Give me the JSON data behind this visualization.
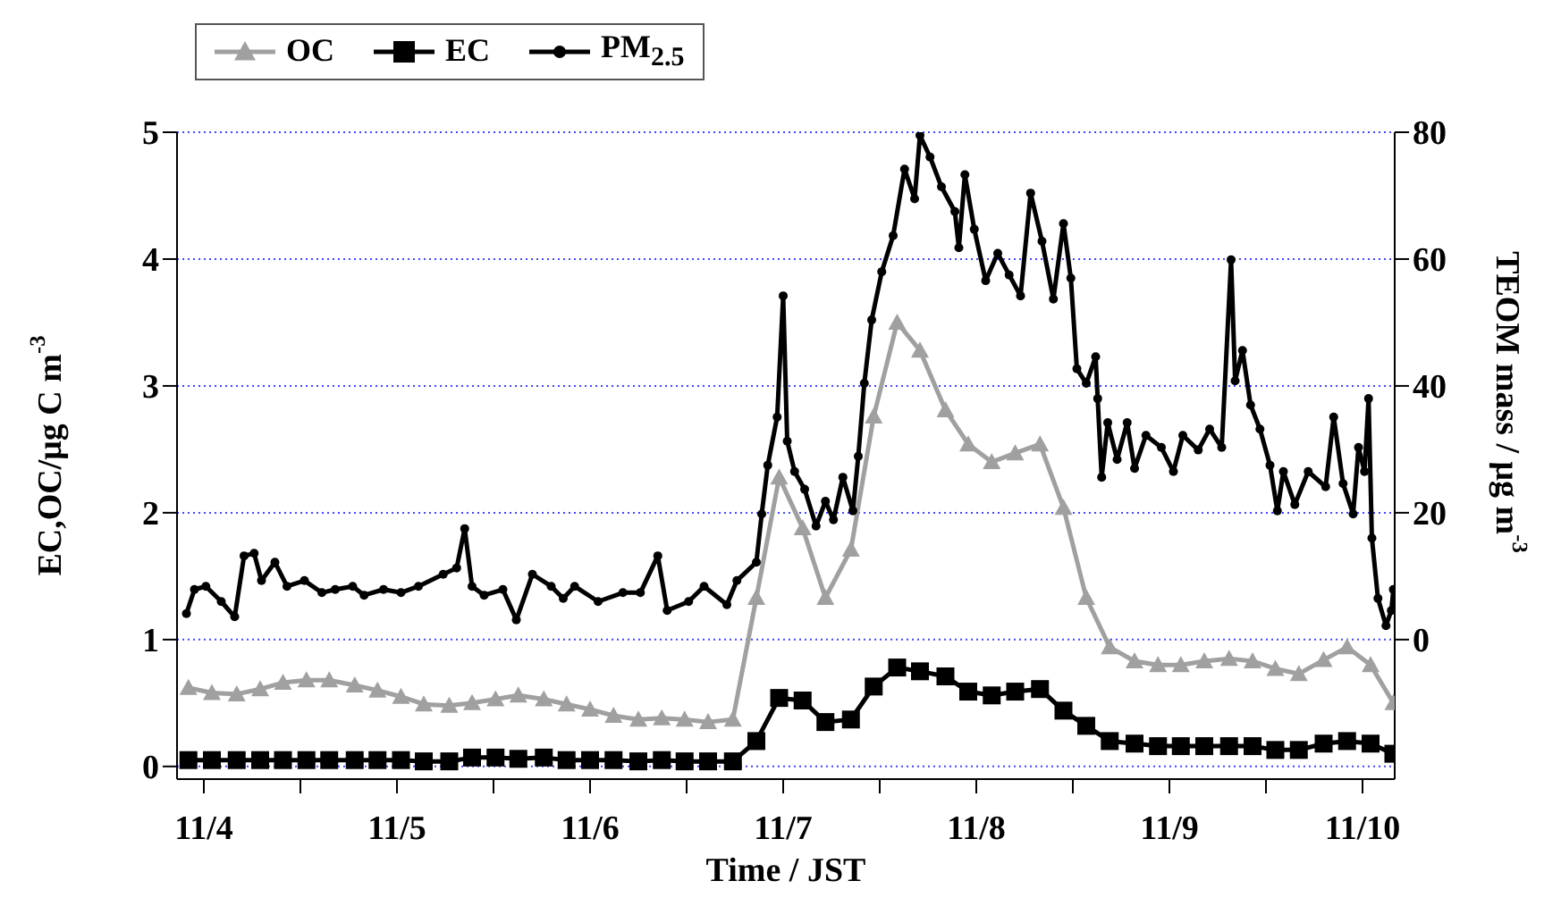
{
  "chart_data": {
    "type": "line",
    "xlabel": "Time / JST",
    "ylabel": "EC,OC/μg C m$^{-3}$",
    "y2label": "TEOM mass / μg m$^{-3}$",
    "x": [
      "--11-03T22:05",
      "--11-04T01:00",
      "--11-04T04:05",
      "--11-04T07:00",
      "--11-04T09:50",
      "--11-04T12:45",
      "--11-04T15:35",
      "--11-04T18:45",
      "--11-04T21:35",
      "--11-05T00:30",
      "--11-05T03:20",
      "--11-05T06:30",
      "--11-05T09:20",
      "--11-05T12:15",
      "--11-05T15:05",
      "--11-05T18:15",
      "--11-05T21:05",
      "--11-06T00:00",
      "--11-06T02:55",
      "--11-06T06:00",
      "--11-06T08:55",
      "--11-06T11:45",
      "--11-06T14:40",
      "--11-06T17:45",
      "--11-06T20:40",
      "--11-06T23:30",
      "--11-07T02:25",
      "--11-07T05:15",
      "--11-07T08:25",
      "--11-07T11:15",
      "--11-07T14:10",
      "--11-07T17:00",
      "--11-07T20:10",
      "--11-07T23:00",
      "--11-08T01:55",
      "--11-08T04:50",
      "--11-08T07:55",
      "--11-08T10:50",
      "--11-08T13:40",
      "--11-08T16:35",
      "--11-08T19:40",
      "--11-08T22:35",
      "--11-09T01:25",
      "--11-09T04:20",
      "--11-09T07:25",
      "--11-09T10:20",
      "--11-09T13:10",
      "--11-09T16:05",
      "--11-09T19:10",
      "--11-09T22:05",
      "--11-10T01:00",
      "--11-10T03:50"
    ],
    "series": [
      {
        "name": "OC",
        "color": "#a0a0a0",
        "marker": "triangle",
        "values": [
          0.62,
          0.58,
          0.57,
          0.61,
          0.66,
          0.68,
          0.68,
          0.64,
          0.6,
          0.55,
          0.49,
          0.48,
          0.5,
          0.53,
          0.56,
          0.53,
          0.49,
          0.45,
          0.4,
          0.37,
          0.38,
          0.37,
          0.35,
          0.37,
          1.33,
          2.28,
          1.88,
          1.33,
          1.71,
          2.76,
          3.5,
          3.28,
          2.81,
          2.54,
          2.4,
          2.47,
          2.54,
          2.04,
          1.33,
          0.94,
          0.83,
          0.8,
          0.8,
          0.83,
          0.85,
          0.83,
          0.77,
          0.73,
          0.84,
          0.94,
          0.8,
          0.5
        ]
      },
      {
        "name": "EC",
        "color": "#000000",
        "marker": "square",
        "values": [
          0.05,
          0.05,
          0.05,
          0.05,
          0.05,
          0.05,
          0.05,
          0.05,
          0.05,
          0.05,
          0.04,
          0.04,
          0.07,
          0.07,
          0.06,
          0.07,
          0.05,
          0.05,
          0.05,
          0.04,
          0.05,
          0.04,
          0.04,
          0.04,
          0.2,
          0.54,
          0.52,
          0.35,
          0.37,
          0.63,
          0.78,
          0.75,
          0.71,
          0.59,
          0.56,
          0.59,
          0.61,
          0.44,
          0.32,
          0.2,
          0.18,
          0.16,
          0.16,
          0.16,
          0.16,
          0.16,
          0.13,
          0.13,
          0.18,
          0.2,
          0.18,
          0.1
        ]
      },
      {
        "name": "PM$_{2.5}$",
        "color": "#000000",
        "marker": "circle",
        "axis": "y2",
        "x": [
          "--11-03T21:50",
          "--11-03T22:50",
          "--11-04T00:15",
          "--11-04T02:10",
          "--11-04T03:50",
          "--11-04T05:00",
          "--11-04T06:15",
          "--11-04T07:10",
          "--11-04T08:50",
          "--11-04T10:20",
          "--11-04T12:30",
          "--11-04T14:40",
          "--11-04T16:20",
          "--11-04T18:30",
          "--11-04T19:55",
          "--11-04T22:20",
          "--11-05T00:30",
          "--11-05T02:40",
          "--11-05T05:45",
          "--11-05T07:25",
          "--11-05T08:25",
          "--11-05T09:20",
          "--11-05T10:50",
          "--11-05T13:10",
          "--11-05T14:50",
          "--11-05T16:50",
          "--11-05T19:10",
          "--11-05T20:40",
          "--11-05T22:05",
          "--11-06T01:00",
          "--11-06T04:05",
          "--11-06T06:15",
          "--11-06T08:25",
          "--11-06T09:35",
          "--11-06T12:15",
          "--11-06T14:10",
          "--11-06T17:00",
          "--11-06T18:15",
          "--11-06T20:40",
          "--11-06T21:20",
          "--11-06T22:05",
          "--11-06T23:15",
          "--11-07T00:00",
          "--11-07T00:30",
          "--11-07T01:25",
          "--11-07T02:40",
          "--11-07T04:05",
          "--11-07T05:15",
          "--11-07T06:15",
          "--11-07T07:25",
          "--11-07T08:40",
          "--11-07T09:20",
          "--11-07T10:05",
          "--11-07T11:00",
          "--11-07T12:15",
          "--11-07T13:40",
          "--11-07T15:05",
          "--11-07T16:20",
          "--11-07T17:00",
          "--11-07T18:15",
          "--11-07T19:40",
          "--11-07T21:20",
          "--11-07T21:50",
          "--11-07T22:35",
          "--11-07T23:45",
          "--11-08T01:10",
          "--11-08T02:40",
          "--11-08T04:05",
          "--11-08T05:30",
          "--11-08T06:45",
          "--11-08T08:10",
          "--11-08T09:35",
          "--11-08T10:50",
          "--11-08T11:45",
          "--11-08T12:30",
          "--11-08T13:40",
          "--11-08T14:50",
          "--11-08T15:05",
          "--11-08T15:35",
          "--11-08T16:20",
          "--11-08T17:30",
          "--11-08T18:45",
          "--11-08T19:40",
          "--11-08T21:05",
          "--11-08T23:00",
          "--11-09T00:30",
          "--11-09T01:40",
          "--11-09T03:35",
          "--11-09T05:00",
          "--11-09T06:30",
          "--11-09T07:40",
          "--11-09T08:10",
          "--11-09T09:05",
          "--11-09T10:05",
          "--11-09T11:15",
          "--11-09T12:30",
          "--11-09T13:25",
          "--11-09T14:10",
          "--11-09T15:35",
          "--11-09T17:15",
          "--11-09T19:25",
          "--11-09T20:25",
          "--11-09T21:35",
          "--11-09T22:50",
          "--11-09T23:30",
          "--11-10T00:15",
          "--11-10T00:45",
          "--11-10T01:10",
          "--11-10T01:55",
          "--11-10T02:55",
          "--11-10T03:35",
          "--11-10T03:50"
        ],
        "values": [
          4.1,
          7.9,
          8.4,
          6.0,
          3.6,
          13.2,
          13.6,
          9.3,
          12.2,
          8.4,
          9.3,
          7.4,
          7.9,
          8.4,
          7.0,
          7.9,
          7.4,
          8.4,
          10.3,
          11.3,
          17.5,
          8.4,
          7.0,
          7.9,
          3.1,
          10.3,
          8.4,
          6.5,
          8.4,
          6.0,
          7.4,
          7.4,
          13.2,
          4.6,
          6.0,
          8.4,
          5.5,
          9.3,
          12.2,
          19.8,
          27.5,
          35.1,
          54.2,
          31.3,
          26.5,
          23.7,
          17.9,
          21.8,
          18.9,
          25.6,
          20.3,
          28.9,
          40.4,
          50.4,
          58.0,
          63.7,
          74.2,
          69.5,
          79.5,
          76.1,
          71.4,
          67.5,
          61.8,
          73.3,
          64.7,
          56.6,
          60.9,
          57.5,
          54.2,
          70.4,
          62.8,
          53.7,
          65.6,
          57.0,
          42.7,
          40.4,
          44.6,
          38.0,
          25.6,
          34.2,
          28.4,
          34.2,
          27.0,
          32.2,
          30.3,
          26.5,
          32.2,
          29.9,
          33.2,
          30.3,
          59.9,
          40.8,
          45.6,
          37.0,
          33.2,
          27.5,
          20.3,
          26.5,
          21.3,
          26.5,
          24.1,
          35.1,
          24.6,
          19.8,
          30.3,
          26.5,
          38.0,
          16.0,
          6.5,
          2.2,
          4.6,
          7.9
        ]
      }
    ],
    "xlim": [
      "--11-03T20:40",
      "--11-10T04:00"
    ],
    "xticks": [
      {
        "value": "--11-04",
        "label": "11/4"
      },
      {
        "value": "--11-04T12:00",
        "label": null
      },
      {
        "value": "--11-05",
        "label": "11/5"
      },
      {
        "value": "--11-05T12:00",
        "label": null
      },
      {
        "value": "--11-06",
        "label": "11/6"
      },
      {
        "value": "--11-06T12:00",
        "label": null
      },
      {
        "value": "--11-07",
        "label": "11/7"
      },
      {
        "value": "--11-07T12:00",
        "label": null
      },
      {
        "value": "--11-08",
        "label": "11/8"
      },
      {
        "value": "--11-08T12:00",
        "label": null
      },
      {
        "value": "--11-09",
        "label": "11/9"
      },
      {
        "value": "--11-09T12:00",
        "label": null
      },
      {
        "value": "--11-10",
        "label": "11/10"
      }
    ],
    "ylim": [
      -0.1,
      5
    ],
    "yticks": [
      0,
      1,
      2,
      3,
      4,
      5
    ],
    "y2lim": [
      -22,
      80
    ],
    "y2ticks": [
      0,
      20,
      40,
      60,
      80
    ],
    "grid": "y",
    "legend": "top left"
  }
}
